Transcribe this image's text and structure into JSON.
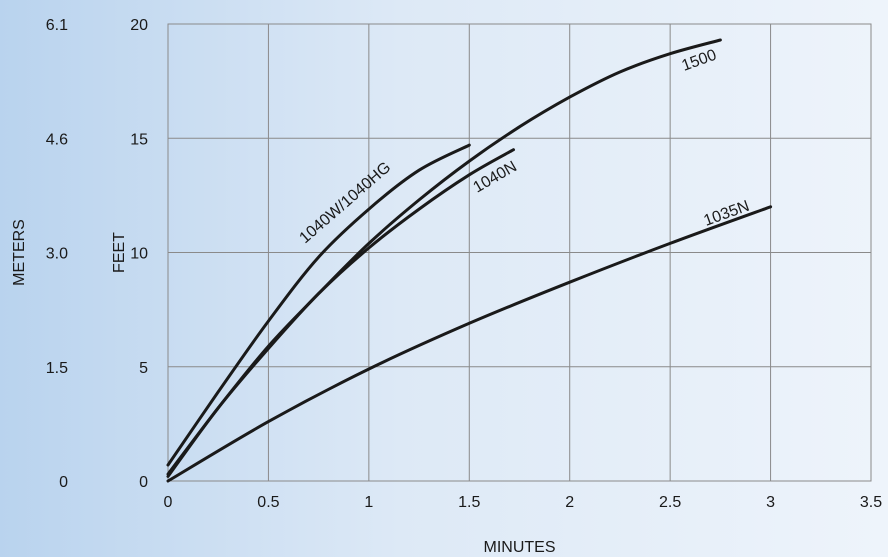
{
  "chart_data": {
    "type": "line",
    "title": "",
    "xlabel": "MINUTES",
    "ylabel": "FEET",
    "y2label": "METERS",
    "xlim": [
      0,
      3.5
    ],
    "ylim": [
      0,
      20
    ],
    "grid": true,
    "x_ticks": [
      "0",
      "0.5",
      "1",
      "1.5",
      "2",
      "2.5",
      "3",
      "3.5"
    ],
    "y_ticks": [
      "0",
      "5",
      "10",
      "15",
      "20"
    ],
    "y2_ticks": [
      "0",
      "1.5",
      "3.0",
      "4.6",
      "6.1"
    ],
    "series": [
      {
        "name": "1040W/1040HG",
        "x": [
          0,
          0.25,
          0.5,
          0.75,
          1.0,
          1.25,
          1.5
        ],
        "y": [
          0.7,
          3.9,
          7.0,
          9.8,
          11.9,
          13.6,
          14.7
        ]
      },
      {
        "name": "1040N",
        "x": [
          0,
          0.25,
          0.5,
          0.75,
          1.0,
          1.25,
          1.5,
          1.72
        ],
        "y": [
          0.2,
          3.2,
          5.8,
          8.2,
          10.2,
          11.9,
          13.4,
          14.5
        ]
      },
      {
        "name": "1500",
        "x": [
          0,
          0.25,
          0.5,
          0.75,
          1.0,
          1.25,
          1.5,
          1.75,
          2.0,
          2.25,
          2.5,
          2.75
        ],
        "y": [
          0.3,
          3.2,
          5.9,
          8.2,
          10.4,
          12.3,
          14.0,
          15.5,
          16.8,
          17.9,
          18.7,
          19.3
        ]
      },
      {
        "name": "1035N",
        "x": [
          0,
          0.5,
          1.0,
          1.5,
          2.0,
          2.5,
          3.0
        ],
        "y": [
          0,
          2.6,
          4.9,
          6.9,
          8.7,
          10.4,
          12.0
        ]
      }
    ]
  }
}
